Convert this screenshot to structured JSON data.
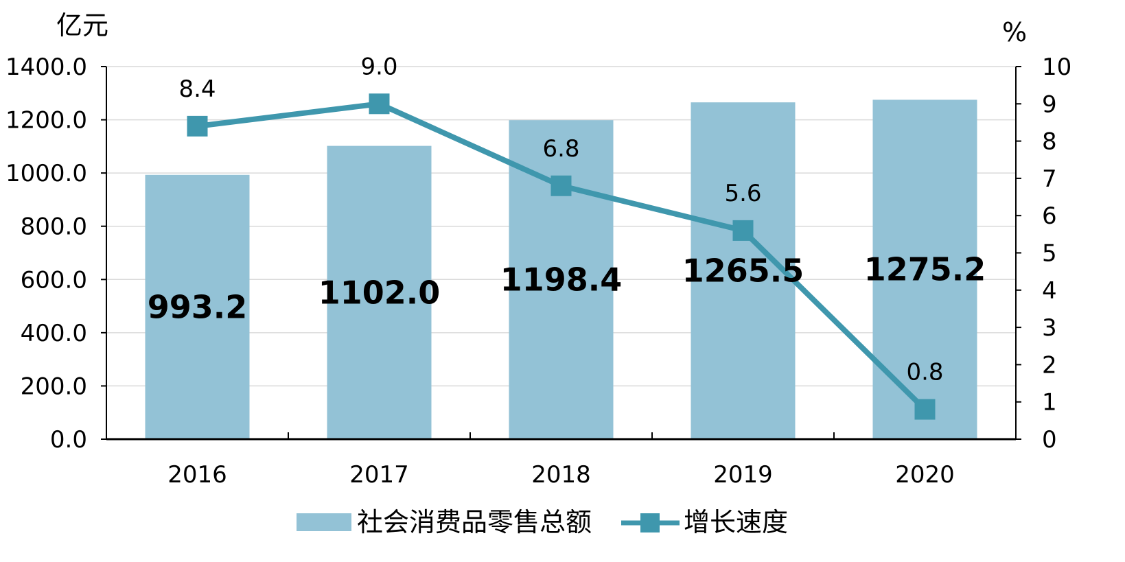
{
  "chart_data": {
    "type": "bar",
    "categories": [
      "2016",
      "2017",
      "2018",
      "2019",
      "2020"
    ],
    "series": [
      {
        "name": "社会消费品零售总额",
        "kind": "bar",
        "axis": "left",
        "values": [
          993.2,
          1102.0,
          1198.4,
          1265.5,
          1275.2
        ],
        "labels": [
          "993.2",
          "1102.0",
          "1198.4",
          "1265.5",
          "1275.2"
        ],
        "color": "#93c2d6"
      },
      {
        "name": "增长速度",
        "kind": "line",
        "axis": "right",
        "values": [
          8.4,
          9.0,
          6.8,
          5.6,
          0.8
        ],
        "labels": [
          "8.4",
          "9.0",
          "6.8",
          "5.6",
          "0.8"
        ],
        "color": "#3f97ad"
      }
    ],
    "y_left": {
      "unit": "亿元",
      "ylim": [
        0,
        1400
      ],
      "ticks": [
        "0.0",
        "200.0",
        "400.0",
        "600.0",
        "800.0",
        "1000.0",
        "1200.0",
        "1400.0"
      ]
    },
    "y_right": {
      "unit": "%",
      "ylim": [
        0,
        10
      ],
      "ticks": [
        "0",
        "1",
        "2",
        "3",
        "4",
        "5",
        "6",
        "7",
        "8",
        "9",
        "10"
      ]
    },
    "grid": true,
    "legend_position": "bottom"
  }
}
